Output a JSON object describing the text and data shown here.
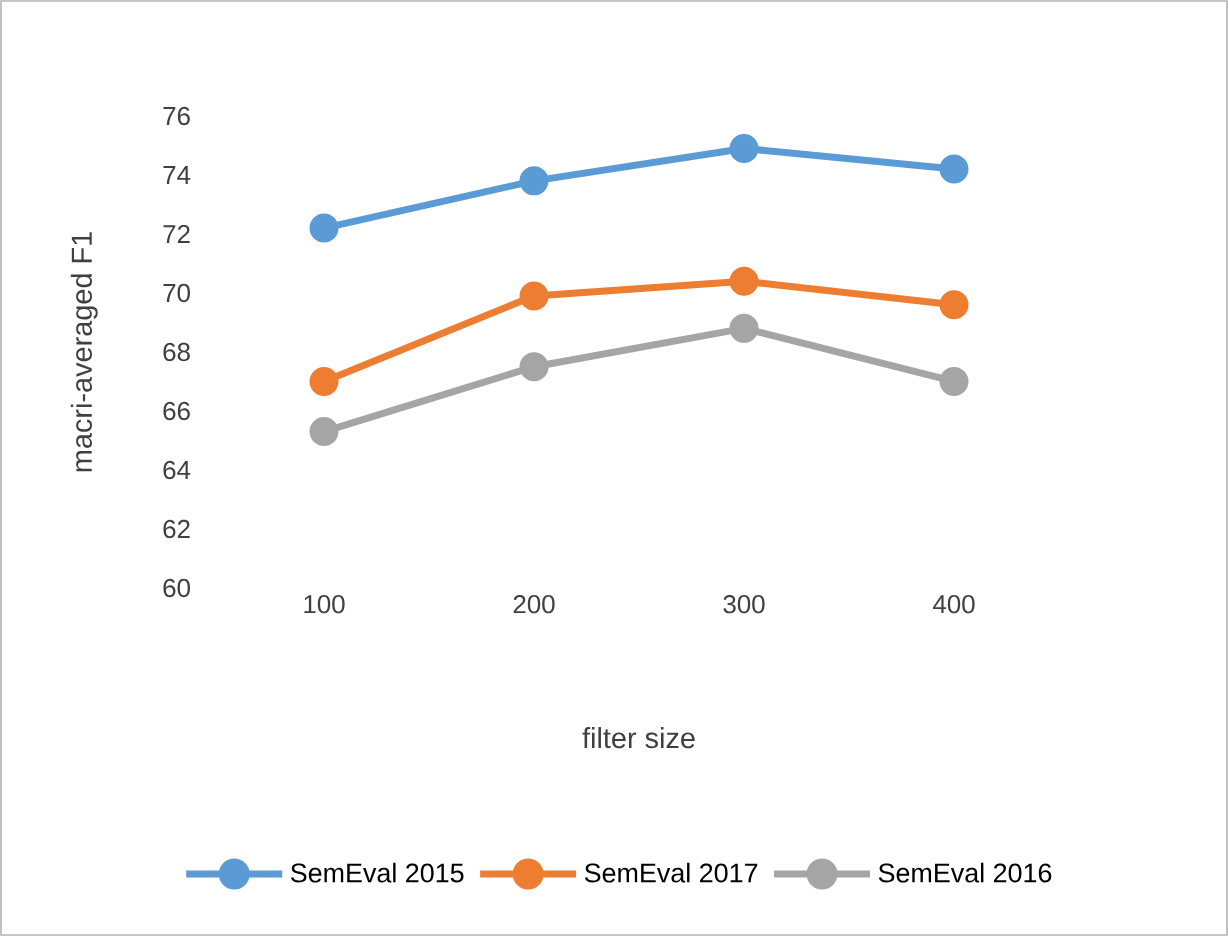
{
  "chart_data": {
    "type": "line",
    "xlabel": "filter size",
    "ylabel": "macri-averaged F1",
    "categories": [
      "100",
      "200",
      "300",
      "400"
    ],
    "series": [
      {
        "name": "SemEval 2015",
        "color": "#5b9bd5",
        "values": [
          72.2,
          73.8,
          74.9,
          74.2
        ]
      },
      {
        "name": "SemEval 2017",
        "color": "#ed7d31",
        "values": [
          67.0,
          69.9,
          70.4,
          69.6
        ]
      },
      {
        "name": "SemEval 2016",
        "color": "#a5a5a5",
        "values": [
          65.3,
          67.5,
          68.8,
          67.0
        ]
      }
    ],
    "ylim": [
      60,
      76
    ],
    "yticks": [
      60,
      62,
      64,
      66,
      68,
      70,
      72,
      74,
      76
    ],
    "grid": false,
    "legend": "bottom",
    "marker": "circle",
    "line_style": "solid"
  }
}
